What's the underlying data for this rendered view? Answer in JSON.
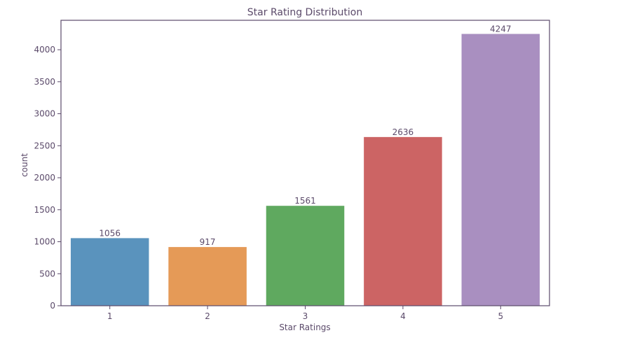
{
  "chart_data": {
    "type": "bar",
    "title": "Star Rating Distribution",
    "xlabel": "Star Ratings",
    "ylabel": "count",
    "categories": [
      "1",
      "2",
      "3",
      "4",
      "5"
    ],
    "values": [
      1056,
      917,
      1561,
      2636,
      4247
    ],
    "data_labels": [
      "1056",
      "917",
      "1561",
      "2636",
      "4247"
    ],
    "colors": [
      "#5a93bd",
      "#e59a57",
      "#5fa95f",
      "#cc6464",
      "#a98fc0"
    ],
    "ylim": [
      0,
      4460
    ],
    "yticks": [
      0,
      500,
      1000,
      1500,
      2000,
      2500,
      3000,
      3500,
      4000
    ],
    "ytick_labels": [
      "0",
      "500",
      "1000",
      "1500",
      "2000",
      "2500",
      "3000",
      "3500",
      "4000"
    ],
    "grid": false,
    "legend": "none",
    "axis_color": "#5b4a6a"
  }
}
